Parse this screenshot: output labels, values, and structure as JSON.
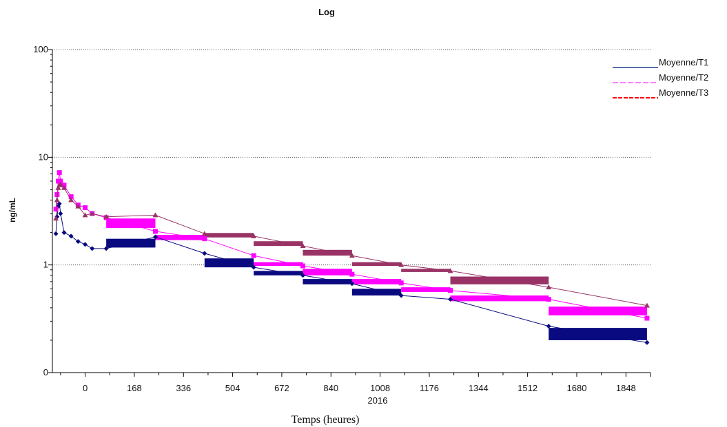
{
  "chart_data": {
    "type": "line",
    "title": "Log",
    "xlabel": "Temps (heures)",
    "ylabel": "ng/mL",
    "yscale": "log",
    "ylim": [
      0.1,
      100
    ],
    "xlim": [
      -112,
      1932
    ],
    "x_ticks": [
      0,
      168,
      336,
      504,
      672,
      840,
      1008,
      1176,
      1344,
      1512,
      1680,
      1848
    ],
    "x_tick_labels": [
      "0",
      "168",
      "336",
      "504",
      "672",
      "840",
      "1008",
      "1176",
      "1344",
      "1512",
      "1680",
      "1848"
    ],
    "x_extra_label": "2016",
    "y_ticks": [
      0.1,
      1,
      10,
      100
    ],
    "y_tick_labels": [
      "0",
      "1",
      "10",
      "100"
    ],
    "grid": "horizontal dotted",
    "legend_position": "top-right",
    "series": [
      {
        "name": "Moyenne/T1",
        "color": "#0a0a80",
        "marker": "diamond",
        "x": [
          -100,
          -96,
          -92,
          -88,
          -84,
          -72,
          -48,
          -24,
          0,
          24,
          72,
          240,
          408,
          576,
          744,
          912,
          1080,
          1248,
          1584,
          1920
        ],
        "y": [
          1.95,
          2.8,
          3.5,
          3.7,
          3.0,
          2.0,
          1.85,
          1.65,
          1.55,
          1.42,
          1.42,
          1.82,
          1.28,
          0.95,
          0.8,
          0.67,
          0.52,
          0.48,
          0.27,
          0.19
        ]
      },
      {
        "name": "Moyenne/T2",
        "color": "#ff00ff",
        "marker": "square",
        "x": [
          -100,
          -96,
          -92,
          -88,
          -84,
          -72,
          -48,
          -24,
          0,
          24,
          72,
          240,
          408,
          576,
          744,
          912,
          1080,
          1248,
          1584,
          1920
        ],
        "y": [
          3.3,
          4.5,
          6.0,
          7.2,
          6.0,
          5.5,
          4.3,
          3.6,
          3.4,
          3.0,
          2.75,
          2.05,
          1.75,
          1.22,
          0.98,
          0.82,
          0.68,
          0.58,
          0.48,
          0.32
        ]
      },
      {
        "name": "Moyenne/T3",
        "color": "#993366",
        "marker": "triangle",
        "x": [
          -100,
          -96,
          -92,
          -88,
          -84,
          -72,
          -48,
          -24,
          0,
          24,
          72,
          240,
          408,
          576,
          744,
          912,
          1080,
          1248,
          1584,
          1920
        ],
        "y": [
          2.7,
          4.0,
          5.2,
          5.5,
          5.6,
          5.2,
          4.0,
          3.5,
          2.9,
          3.0,
          2.8,
          2.9,
          1.95,
          1.85,
          1.5,
          1.22,
          1.0,
          0.88,
          0.62,
          0.42
        ]
      }
    ],
    "bands": [
      {
        "series": "Moyenne/T1",
        "color": "#0a0a80",
        "x0": 72,
        "x1": 240,
        "y0": 1.45,
        "y1": 1.75
      },
      {
        "series": "Moyenne/T1",
        "color": "#0a0a80",
        "x0": 408,
        "x1": 576,
        "y0": 0.95,
        "y1": 1.15
      },
      {
        "series": "Moyenne/T1",
        "color": "#0a0a80",
        "x0": 576,
        "x1": 744,
        "y0": 0.8,
        "y1": 0.88
      },
      {
        "series": "Moyenne/T1",
        "color": "#0a0a80",
        "x0": 744,
        "x1": 912,
        "y0": 0.66,
        "y1": 0.74
      },
      {
        "series": "Moyenne/T1",
        "color": "#0a0a80",
        "x0": 912,
        "x1": 1080,
        "y0": 0.52,
        "y1": 0.6
      },
      {
        "series": "Moyenne/T1",
        "color": "#0a0a80",
        "x0": 1584,
        "x1": 1920,
        "y0": 0.2,
        "y1": 0.26
      },
      {
        "series": "Moyenne/T2",
        "color": "#ff00ff",
        "x0": 72,
        "x1": 240,
        "y0": 2.2,
        "y1": 2.7
      },
      {
        "series": "Moyenne/T2",
        "color": "#ff00ff",
        "x0": 240,
        "x1": 408,
        "y0": 1.7,
        "y1": 1.9
      },
      {
        "series": "Moyenne/T2",
        "color": "#ff00ff",
        "x0": 576,
        "x1": 744,
        "y0": 0.98,
        "y1": 1.06
      },
      {
        "series": "Moyenne/T2",
        "color": "#ff00ff",
        "x0": 744,
        "x1": 912,
        "y0": 0.8,
        "y1": 0.92
      },
      {
        "series": "Moyenne/T2",
        "color": "#ff00ff",
        "x0": 912,
        "x1": 1080,
        "y0": 0.66,
        "y1": 0.74
      },
      {
        "series": "Moyenne/T2",
        "color": "#ff00ff",
        "x0": 1080,
        "x1": 1248,
        "y0": 0.56,
        "y1": 0.62
      },
      {
        "series": "Moyenne/T2",
        "color": "#ff00ff",
        "x0": 1248,
        "x1": 1584,
        "y0": 0.46,
        "y1": 0.52
      },
      {
        "series": "Moyenne/T2",
        "color": "#ff00ff",
        "x0": 1584,
        "x1": 1920,
        "y0": 0.34,
        "y1": 0.41
      },
      {
        "series": "Moyenne/T3",
        "color": "#993366",
        "x0": 408,
        "x1": 576,
        "y0": 1.8,
        "y1": 1.98
      },
      {
        "series": "Moyenne/T3",
        "color": "#993366",
        "x0": 576,
        "x1": 744,
        "y0": 1.5,
        "y1": 1.66
      },
      {
        "series": "Moyenne/T3",
        "color": "#993366",
        "x0": 744,
        "x1": 912,
        "y0": 1.22,
        "y1": 1.38
      },
      {
        "series": "Moyenne/T3",
        "color": "#993366",
        "x0": 912,
        "x1": 1080,
        "y0": 0.98,
        "y1": 1.06
      },
      {
        "series": "Moyenne/T3",
        "color": "#993366",
        "x0": 1080,
        "x1": 1248,
        "y0": 0.86,
        "y1": 0.92
      },
      {
        "series": "Moyenne/T3",
        "color": "#993366",
        "x0": 1248,
        "x1": 1584,
        "y0": 0.66,
        "y1": 0.78
      }
    ],
    "legend": [
      {
        "label": "Moyenne/T1",
        "color": "#1f3b8f",
        "style": "solid"
      },
      {
        "label": "Moyenne/T2",
        "color": "#ff55ff",
        "style": "dashed"
      },
      {
        "label": "Moyenne/T3",
        "color": "#ff0000",
        "style": "dashed"
      }
    ]
  }
}
